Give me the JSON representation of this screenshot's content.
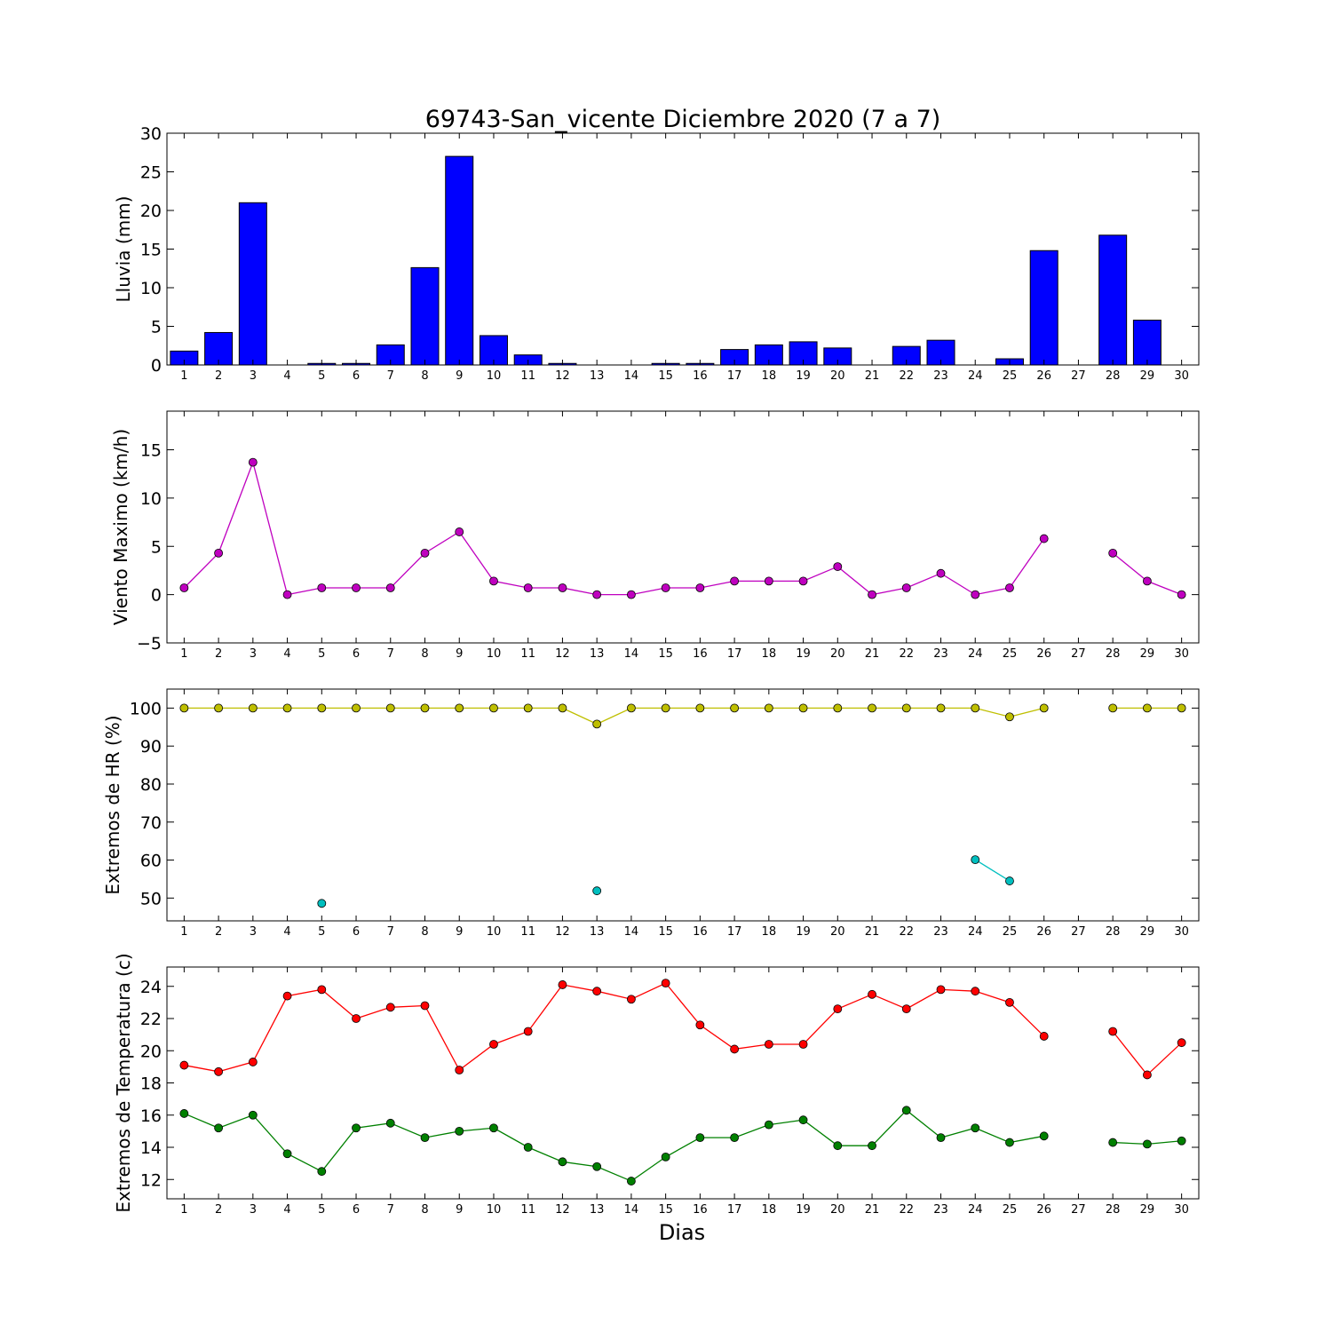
{
  "title": "69743-San_vicente Diciembre 2020  (7 a 7)",
  "xlabel": "Dias",
  "chart_data": [
    {
      "type": "bar",
      "ylabel": "Lluvia (mm)",
      "ylim": [
        0,
        30
      ],
      "yticks": [
        0,
        5,
        10,
        15,
        20,
        25,
        30
      ],
      "categories": [
        1,
        2,
        3,
        4,
        5,
        6,
        7,
        8,
        9,
        10,
        11,
        12,
        13,
        14,
        15,
        16,
        17,
        18,
        19,
        20,
        21,
        22,
        23,
        24,
        25,
        26,
        27,
        28,
        29,
        30
      ],
      "xticks": [
        1,
        2,
        3,
        4,
        5,
        6,
        7,
        8,
        9,
        10,
        11,
        12,
        13,
        14,
        15,
        16,
        17,
        18,
        19,
        20,
        21,
        22,
        23,
        24,
        25,
        26,
        27,
        28,
        29,
        30
      ],
      "values": [
        1.8,
        4.2,
        21.0,
        0,
        0.2,
        0.2,
        2.6,
        12.6,
        27.0,
        3.8,
        1.3,
        0.2,
        0,
        0,
        0.2,
        0.2,
        2.0,
        2.6,
        3.0,
        2.2,
        0,
        2.4,
        3.2,
        0,
        0.8,
        14.8,
        0,
        16.8,
        5.8,
        0
      ],
      "color": "#0000ff"
    },
    {
      "type": "line",
      "ylabel": "Viento Maximo (km/h)",
      "ylim": [
        -5,
        19
      ],
      "yticks": [
        -5,
        0,
        5,
        10,
        15
      ],
      "xticks": [
        1,
        2,
        3,
        4,
        5,
        6,
        7,
        8,
        9,
        10,
        11,
        12,
        13,
        14,
        15,
        16,
        17,
        18,
        19,
        20,
        21,
        22,
        23,
        24,
        25,
        26,
        27,
        28,
        29,
        30
      ],
      "series": [
        {
          "color": "#bf00bf",
          "x": [
            1,
            2,
            3,
            4,
            5,
            6,
            7,
            8,
            9,
            10,
            11,
            12,
            13,
            14,
            15,
            16,
            17,
            18,
            19,
            20,
            21,
            22,
            23,
            24,
            25,
            26,
            27,
            28,
            29,
            30
          ],
          "y": [
            0.7,
            4.3,
            13.7,
            0,
            0.7,
            0.7,
            0.7,
            4.3,
            6.5,
            1.4,
            0.7,
            0.7,
            0,
            0,
            0.7,
            0.7,
            1.4,
            1.4,
            1.4,
            2.9,
            0,
            0.7,
            2.2,
            0,
            0.7,
            5.8,
            null,
            4.3,
            1.4,
            0
          ]
        }
      ]
    },
    {
      "type": "line",
      "ylabel": "Extremos de HR (%)",
      "ylim": [
        44,
        105
      ],
      "yticks": [
        50,
        60,
        70,
        80,
        90,
        100
      ],
      "xticks": [
        1,
        2,
        3,
        4,
        5,
        6,
        7,
        8,
        9,
        10,
        11,
        12,
        13,
        14,
        15,
        16,
        17,
        18,
        19,
        20,
        21,
        22,
        23,
        24,
        25,
        26,
        27,
        28,
        29,
        30
      ],
      "series": [
        {
          "color": "#bfbf00",
          "x": [
            1,
            2,
            3,
            4,
            5,
            6,
            7,
            8,
            9,
            10,
            11,
            12,
            13,
            14,
            15,
            16,
            17,
            18,
            19,
            20,
            21,
            22,
            23,
            24,
            25,
            26,
            27,
            28,
            29,
            30
          ],
          "y": [
            100,
            100,
            100,
            100,
            100,
            100,
            100,
            100,
            100,
            100,
            100,
            100,
            95.8,
            100,
            100,
            100,
            100,
            100,
            100,
            100,
            100,
            100,
            100,
            100,
            97.7,
            100,
            null,
            100,
            100,
            100
          ]
        },
        {
          "color": "#00bfbf",
          "x": [
            1,
            2,
            3,
            4,
            5,
            6,
            7,
            8,
            9,
            10,
            11,
            12,
            13,
            14,
            15,
            16,
            17,
            18,
            19,
            20,
            21,
            22,
            23,
            24,
            25,
            26,
            27,
            28,
            29,
            30
          ],
          "y": [
            null,
            null,
            null,
            null,
            48.6,
            null,
            null,
            null,
            null,
            null,
            null,
            null,
            51.9,
            null,
            null,
            null,
            null,
            null,
            null,
            null,
            null,
            null,
            null,
            60.1,
            54.5,
            null,
            null,
            null,
            null,
            null
          ]
        }
      ]
    },
    {
      "type": "line",
      "ylabel": "Extremos de Temperatura (c)",
      "ylim": [
        10.8,
        25.2
      ],
      "yticks": [
        12,
        14,
        16,
        18,
        20,
        22,
        24
      ],
      "xticks": [
        1,
        2,
        3,
        4,
        5,
        6,
        7,
        8,
        9,
        10,
        11,
        12,
        13,
        14,
        15,
        16,
        17,
        18,
        19,
        20,
        21,
        22,
        23,
        24,
        25,
        26,
        27,
        28,
        29,
        30
      ],
      "series": [
        {
          "color": "#ff0000",
          "x": [
            1,
            2,
            3,
            4,
            5,
            6,
            7,
            8,
            9,
            10,
            11,
            12,
            13,
            14,
            15,
            16,
            17,
            18,
            19,
            20,
            21,
            22,
            23,
            24,
            25,
            26,
            27,
            28,
            29,
            30
          ],
          "y": [
            19.1,
            18.7,
            19.3,
            23.4,
            23.8,
            22.0,
            22.7,
            22.8,
            18.8,
            20.4,
            21.2,
            24.1,
            23.7,
            23.2,
            24.2,
            21.6,
            20.1,
            20.4,
            20.4,
            22.6,
            23.5,
            22.6,
            23.8,
            23.7,
            23.0,
            20.9,
            null,
            21.2,
            18.5,
            20.5
          ]
        },
        {
          "color": "#008000",
          "x": [
            1,
            2,
            3,
            4,
            5,
            6,
            7,
            8,
            9,
            10,
            11,
            12,
            13,
            14,
            15,
            16,
            17,
            18,
            19,
            20,
            21,
            22,
            23,
            24,
            25,
            26,
            27,
            28,
            29,
            30
          ],
          "y": [
            16.1,
            15.2,
            16.0,
            13.6,
            12.5,
            15.2,
            15.5,
            14.6,
            15.0,
            15.2,
            14.0,
            13.1,
            12.8,
            11.9,
            13.4,
            14.6,
            14.6,
            15.4,
            15.7,
            14.1,
            14.1,
            16.3,
            14.6,
            15.2,
            14.3,
            14.7,
            null,
            14.3,
            14.2,
            14.4
          ]
        }
      ]
    }
  ]
}
